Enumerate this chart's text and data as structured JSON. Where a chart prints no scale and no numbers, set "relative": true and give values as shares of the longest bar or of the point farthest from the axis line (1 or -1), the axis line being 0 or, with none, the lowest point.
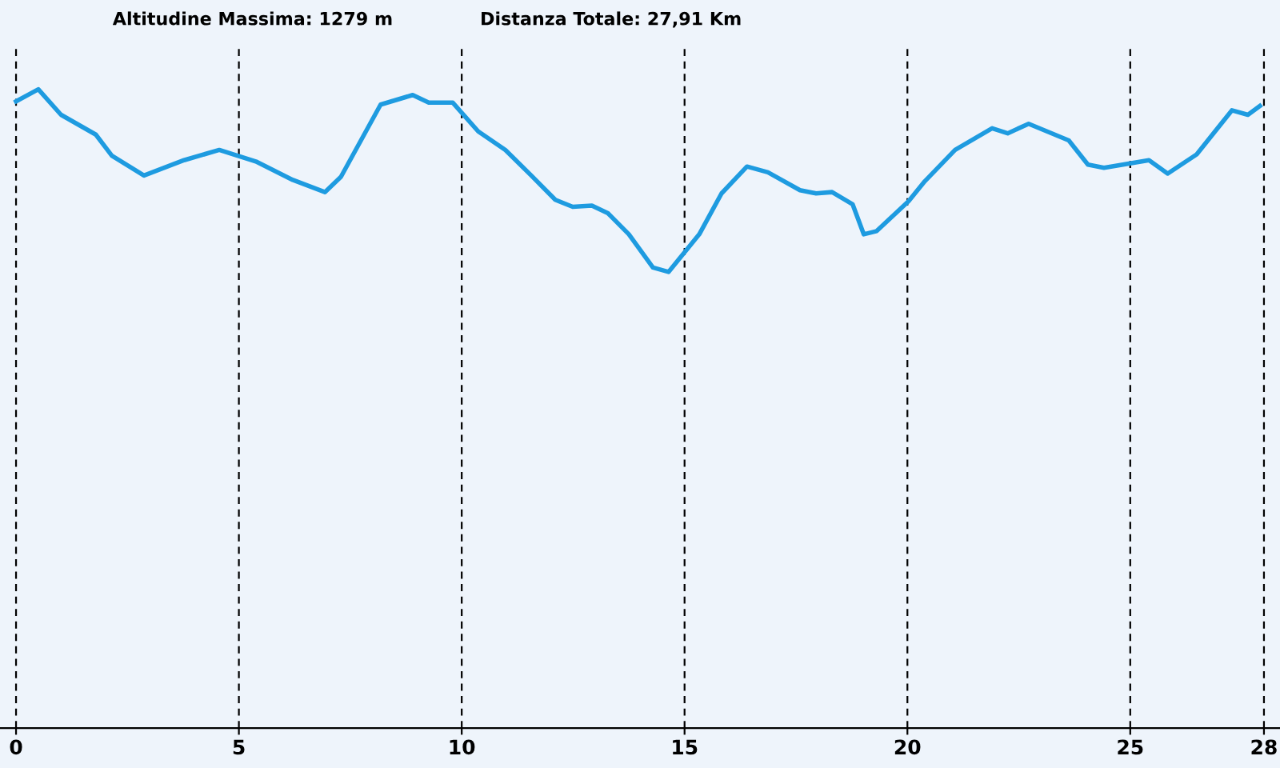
{
  "chart_data": {
    "type": "line",
    "relative": true,
    "annotations": [
      "Altitudine Massima: 1279 m",
      "Distanza Totale: 27,91 Km"
    ],
    "xlim": [
      -0.36,
      28.36
    ],
    "xticks": [
      0,
      5,
      10,
      15,
      20,
      25,
      28
    ],
    "grid": "x",
    "legend": false,
    "marker": "none",
    "line_style": "solid",
    "series": [
      {
        "color": "#1e9be0",
        "x": [
          0,
          0.5,
          1.01,
          1.79,
          2.15,
          2.87,
          3.77,
          4.56,
          5.38,
          6.21,
          6.93,
          7.29,
          8.18,
          8.9,
          9.26,
          9.8,
          10.37,
          10.98,
          11.56,
          12.1,
          12.49,
          12.92,
          13.28,
          13.75,
          14.29,
          14.64,
          15.33,
          15.83,
          16.4,
          16.87,
          17.59,
          17.95,
          18.31,
          18.77,
          19.02,
          19.31,
          20.03,
          20.39,
          21.07,
          21.9,
          22.25,
          22.72,
          23.62,
          24.05,
          24.41,
          25.42,
          25.84,
          26.49,
          27.28,
          27.64,
          27.91
        ],
        "values": [
          0.981,
          1.0,
          0.96,
          0.929,
          0.896,
          0.865,
          0.889,
          0.905,
          0.887,
          0.858,
          0.839,
          0.863,
          0.976,
          0.991,
          0.979,
          0.979,
          0.934,
          0.905,
          0.865,
          0.827,
          0.816,
          0.818,
          0.806,
          0.773,
          0.721,
          0.714,
          0.773,
          0.837,
          0.879,
          0.87,
          0.842,
          0.837,
          0.839,
          0.82,
          0.773,
          0.778,
          0.825,
          0.856,
          0.905,
          0.939,
          0.931,
          0.946,
          0.92,
          0.882,
          0.877,
          0.889,
          0.868,
          0.898,
          0.967,
          0.96,
          0.974
        ]
      }
    ]
  }
}
